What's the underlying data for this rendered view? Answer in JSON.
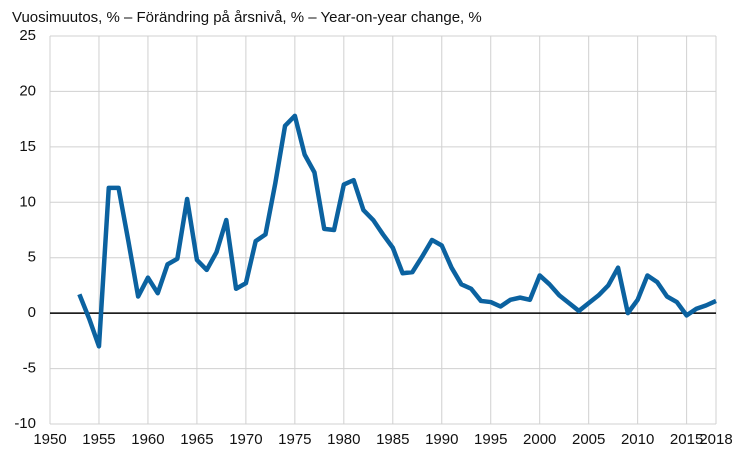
{
  "chart_data": {
    "type": "line",
    "title": "Vuosimuutos, % – Förändring på årsnivå, % – Year-on-year change, %",
    "x": [
      1953,
      1954,
      1955,
      1956,
      1957,
      1958,
      1959,
      1960,
      1961,
      1962,
      1963,
      1964,
      1965,
      1966,
      1967,
      1968,
      1969,
      1970,
      1971,
      1972,
      1973,
      1974,
      1975,
      1976,
      1977,
      1978,
      1979,
      1980,
      1981,
      1982,
      1983,
      1984,
      1985,
      1986,
      1987,
      1988,
      1989,
      1990,
      1991,
      1992,
      1993,
      1994,
      1995,
      1996,
      1997,
      1998,
      1999,
      2000,
      2001,
      2002,
      2003,
      2004,
      2005,
      2006,
      2007,
      2008,
      2009,
      2010,
      2011,
      2012,
      2013,
      2014,
      2015,
      2016,
      2017,
      2018
    ],
    "series": [
      {
        "color": "#0b62a0",
        "values": [
          1.7,
          -0.5,
          -3.0,
          11.3,
          11.3,
          6.5,
          1.5,
          3.2,
          1.8,
          4.4,
          4.9,
          10.3,
          4.8,
          3.9,
          5.5,
          8.4,
          2.2,
          2.7,
          6.5,
          7.1,
          11.7,
          16.9,
          17.8,
          14.3,
          12.7,
          7.6,
          7.5,
          11.6,
          12.0,
          9.3,
          8.4,
          7.1,
          5.9,
          3.6,
          3.7,
          5.1,
          6.6,
          6.1,
          4.1,
          2.6,
          2.2,
          1.1,
          1.0,
          0.6,
          1.2,
          1.4,
          1.2,
          3.4,
          2.6,
          1.6,
          0.9,
          0.2,
          0.9,
          1.6,
          2.5,
          4.1,
          0.0,
          1.2,
          3.4,
          2.8,
          1.5,
          1.0,
          -0.2,
          0.4,
          0.7,
          1.1
        ]
      }
    ],
    "xlim": [
      1950,
      2018
    ],
    "xticks": [
      1950,
      1955,
      1960,
      1965,
      1970,
      1975,
      1980,
      1985,
      1990,
      1995,
      2000,
      2005,
      2010,
      2015,
      2018
    ],
    "ylim": [
      -10,
      25
    ],
    "yticks": [
      -10,
      -5,
      0,
      5,
      10,
      15,
      20,
      25
    ],
    "grid": true
  }
}
